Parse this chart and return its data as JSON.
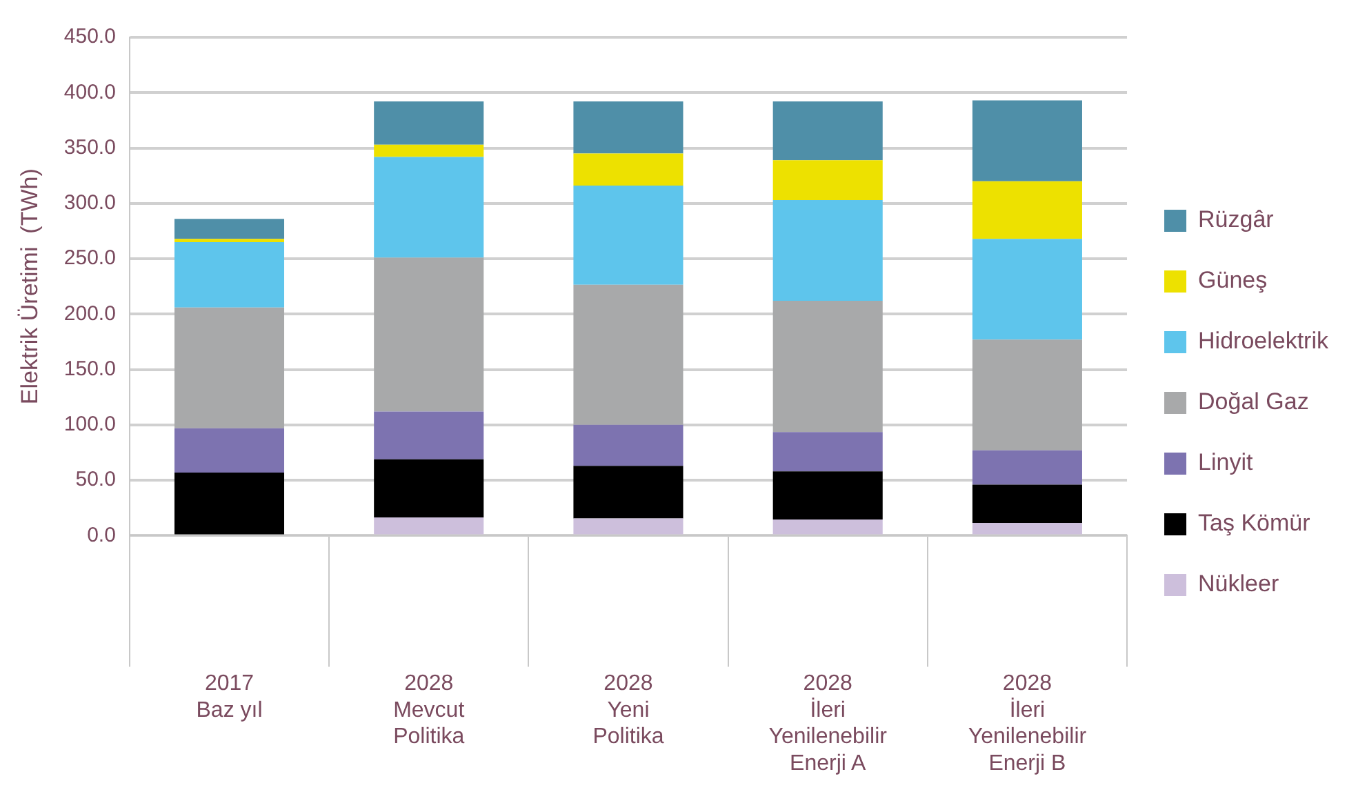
{
  "chart_data": {
    "type": "bar",
    "stacked": true,
    "categories": [
      "2017\nBaz yıl",
      "2028\nMevcut\nPolitika",
      "2028\nYeni\nPolitika",
      "2028\nİleri\nYenilenebilir\nEnerji A",
      "2028\nİleri\nYenilenebilir\nEnerji B"
    ],
    "series": [
      {
        "name": "Nükleer",
        "color": "#cdbfdc",
        "values": [
          0,
          16.5,
          15.5,
          14.5,
          11.5
        ]
      },
      {
        "name": "Taş Kömür",
        "color": "#000000",
        "values": [
          57,
          52.5,
          47.5,
          43.5,
          34.5
        ]
      },
      {
        "name": "Linyit",
        "color": "#7d73b0",
        "values": [
          40,
          43,
          37,
          35.5,
          31
        ]
      },
      {
        "name": "Doğal Gaz",
        "color": "#a8a9aa",
        "values": [
          109,
          139,
          126.5,
          118.5,
          100
        ]
      },
      {
        "name": "Hidroelektrik",
        "color": "#5ec5ec",
        "values": [
          59,
          91,
          89.5,
          91,
          91
        ]
      },
      {
        "name": "Güneş",
        "color": "#ede100",
        "values": [
          3,
          11,
          29,
          36,
          52
        ]
      },
      {
        "name": "Rüzgâr",
        "color": "#4f8fa8",
        "values": [
          18,
          39,
          47,
          53,
          73
        ]
      }
    ],
    "ylabel": "Elektrik Üretimi  (TWh)",
    "ylim": [
      0,
      450
    ],
    "yticks": [
      {
        "value": 0,
        "label": "0.0"
      },
      {
        "value": 50,
        "label": "50.0"
      },
      {
        "value": 100,
        "label": "100.0"
      },
      {
        "value": 150,
        "label": "150.0"
      },
      {
        "value": 200,
        "label": "200.0"
      },
      {
        "value": 250,
        "label": "250.0"
      },
      {
        "value": 300,
        "label": "300.0"
      },
      {
        "value": 350,
        "label": "350.0"
      },
      {
        "value": 400,
        "label": "400.0"
      },
      {
        "value": 450,
        "label": "450.0"
      }
    ],
    "grid": "y",
    "legend": "right"
  }
}
